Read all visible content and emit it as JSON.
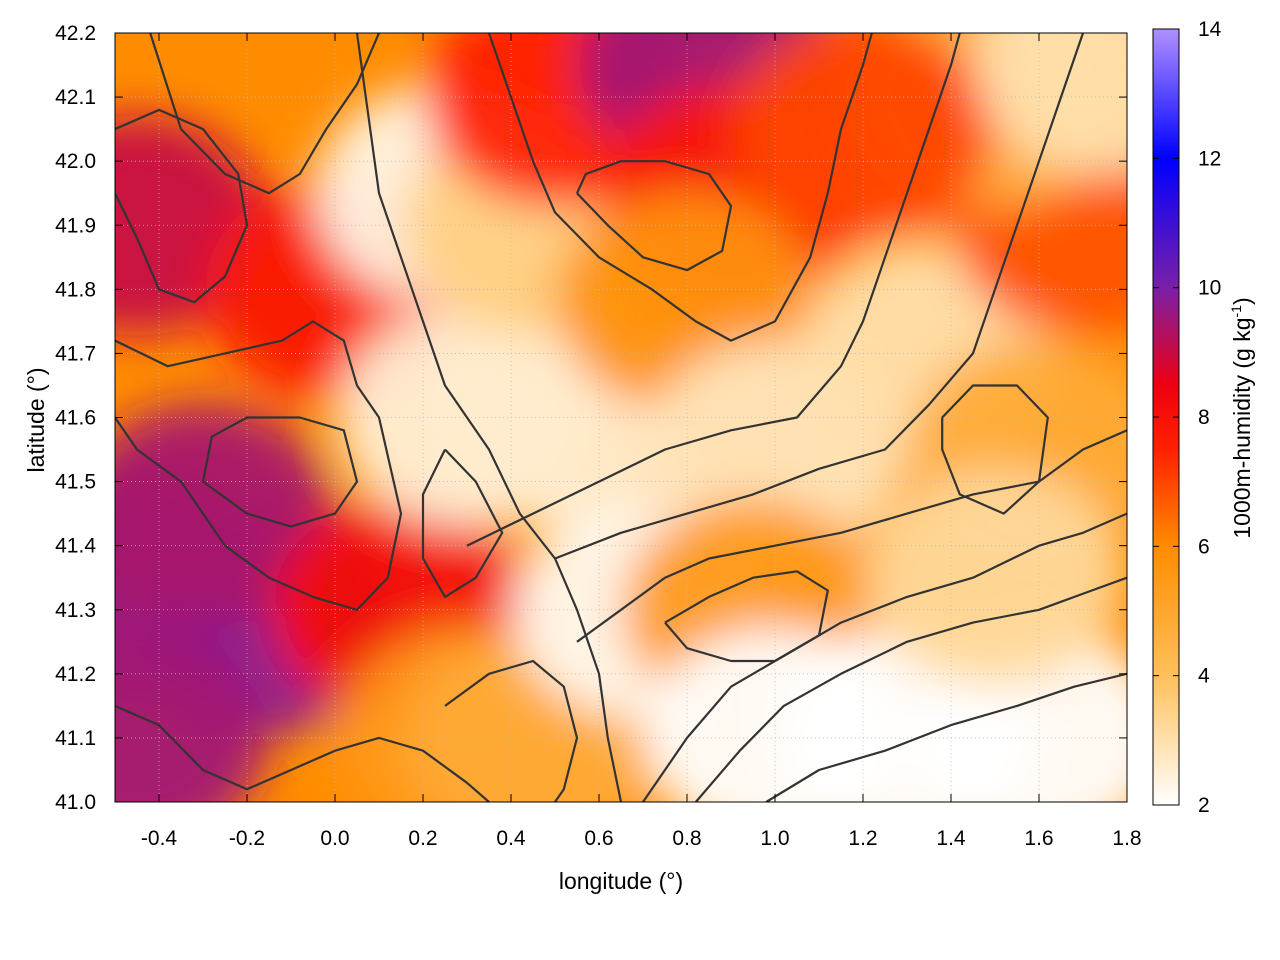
{
  "chart_data": {
    "type": "heatmap",
    "xlabel": "longitude (°)",
    "ylabel": "latitude (°)",
    "colorbar_label": "1000m-humidity (g kg",
    "colorbar_label_sup": "-1",
    "colorbar_label_end": ")",
    "xlim": [
      -0.5,
      1.8
    ],
    "ylim": [
      41.0,
      42.2
    ],
    "clim": [
      2,
      14
    ],
    "x_ticks": [
      -0.4,
      -0.2,
      0.0,
      0.2,
      0.4,
      0.6,
      0.8,
      1.0,
      1.2,
      1.4,
      1.6,
      1.8
    ],
    "x_tick_labels": [
      "-0.4",
      "-0.2",
      "0.0",
      "0.2",
      "0.4",
      "0.6",
      "0.8",
      "1.0",
      "1.2",
      "1.4",
      "1.6",
      "1.8"
    ],
    "y_ticks": [
      41.0,
      41.1,
      41.2,
      41.3,
      41.4,
      41.5,
      41.6,
      41.7,
      41.8,
      41.9,
      42.0,
      42.1,
      42.2
    ],
    "y_tick_labels": [
      "41.0",
      "41.1",
      "41.2",
      "41.3",
      "41.4",
      "41.5",
      "41.6",
      "41.7",
      "41.8",
      "41.9",
      "42.0",
      "42.1",
      "42.2"
    ],
    "colorbar_ticks": [
      2,
      4,
      6,
      8,
      10,
      12,
      14
    ],
    "colorbar_tick_labels": [
      "2",
      "4",
      "6",
      "8",
      "10",
      "12",
      "14"
    ],
    "colormap": [
      {
        "value": 2,
        "color": "#ffffff"
      },
      {
        "value": 4,
        "color": "#ffc05a"
      },
      {
        "value": 6,
        "color": "#ff8c00"
      },
      {
        "value": 7.5,
        "color": "#ff2000"
      },
      {
        "value": 8.5,
        "color": "#ee0010"
      },
      {
        "value": 10,
        "color": "#7a1fa8"
      },
      {
        "value": 12,
        "color": "#0000ff"
      },
      {
        "value": 14,
        "color": "#b090ff"
      }
    ],
    "grid": true,
    "contour_color": "#333333",
    "regions": [
      {
        "x": -0.45,
        "y": 41.35,
        "v": 9.6
      },
      {
        "x": -0.15,
        "y": 41.28,
        "v": 9.8
      },
      {
        "x": -0.3,
        "y": 41.45,
        "v": 9.4
      },
      {
        "x": -0.45,
        "y": 41.1,
        "v": 9.5
      },
      {
        "x": -0.45,
        "y": 41.9,
        "v": 9.0
      },
      {
        "x": 0.0,
        "y": 41.8,
        "v": 7.8
      },
      {
        "x": 0.15,
        "y": 41.3,
        "v": 8.2
      },
      {
        "x": 0.3,
        "y": 41.1,
        "v": 5.5
      },
      {
        "x": 0.45,
        "y": 41.1,
        "v": 4.8
      },
      {
        "x": 0.25,
        "y": 41.95,
        "v": 2.3
      },
      {
        "x": 0.3,
        "y": 41.6,
        "v": 2.5
      },
      {
        "x": 0.5,
        "y": 41.6,
        "v": 2.6
      },
      {
        "x": 0.45,
        "y": 41.9,
        "v": 3.5
      },
      {
        "x": 0.5,
        "y": 42.1,
        "v": 7.5
      },
      {
        "x": 0.85,
        "y": 42.15,
        "v": 9.5
      },
      {
        "x": 0.9,
        "y": 41.95,
        "v": 7.8
      },
      {
        "x": 0.8,
        "y": 41.78,
        "v": 5.8
      },
      {
        "x": 1.0,
        "y": 41.55,
        "v": 2.8
      },
      {
        "x": 0.7,
        "y": 41.3,
        "v": 2.2
      },
      {
        "x": 0.95,
        "y": 41.3,
        "v": 5.5
      },
      {
        "x": 1.0,
        "y": 41.1,
        "v": 2.0
      },
      {
        "x": 1.3,
        "y": 41.1,
        "v": 2.0
      },
      {
        "x": 1.6,
        "y": 41.1,
        "v": 2.0
      },
      {
        "x": 1.35,
        "y": 41.7,
        "v": 3.0
      },
      {
        "x": 1.6,
        "y": 41.55,
        "v": 4.8
      },
      {
        "x": 1.7,
        "y": 41.9,
        "v": 6.8
      },
      {
        "x": 1.5,
        "y": 42.1,
        "v": 4.5
      },
      {
        "x": 1.2,
        "y": 42.05,
        "v": 7.0
      },
      {
        "x": 1.75,
        "y": 42.15,
        "v": 3.0
      },
      {
        "x": 1.5,
        "y": 41.35,
        "v": 3.2
      }
    ],
    "contours": [
      [
        [
          -0.42,
          42.2
        ],
        [
          -0.35,
          42.05
        ],
        [
          -0.25,
          41.98
        ],
        [
          -0.15,
          41.95
        ],
        [
          -0.08,
          41.98
        ],
        [
          -0.02,
          42.05
        ],
        [
          0.05,
          42.12
        ],
        [
          0.1,
          42.2
        ]
      ],
      [
        [
          -0.5,
          41.72
        ],
        [
          -0.38,
          41.68
        ],
        [
          -0.25,
          41.7
        ],
        [
          -0.12,
          41.72
        ],
        [
          -0.05,
          41.75
        ],
        [
          0.02,
          41.72
        ],
        [
          0.05,
          41.65
        ],
        [
          0.1,
          41.6
        ],
        [
          0.15,
          41.45
        ],
        [
          0.12,
          41.35
        ],
        [
          0.05,
          41.3
        ],
        [
          -0.05,
          41.32
        ],
        [
          -0.15,
          41.35
        ],
        [
          -0.25,
          41.4
        ],
        [
          -0.35,
          41.5
        ],
        [
          -0.45,
          41.55
        ],
        [
          -0.5,
          41.6
        ]
      ],
      [
        [
          -0.3,
          41.5
        ],
        [
          -0.2,
          41.45
        ],
        [
          -0.1,
          41.43
        ],
        [
          0.0,
          41.45
        ],
        [
          0.05,
          41.5
        ],
        [
          0.02,
          41.58
        ],
        [
          -0.08,
          41.6
        ],
        [
          -0.2,
          41.6
        ],
        [
          -0.28,
          41.57
        ],
        [
          -0.3,
          41.5
        ]
      ],
      [
        [
          -0.5,
          41.15
        ],
        [
          -0.4,
          41.12
        ],
        [
          -0.3,
          41.05
        ],
        [
          -0.2,
          41.02
        ],
        [
          -0.1,
          41.05
        ],
        [
          0.0,
          41.08
        ],
        [
          0.1,
          41.1
        ],
        [
          0.2,
          41.08
        ],
        [
          0.3,
          41.03
        ],
        [
          0.35,
          41.0
        ]
      ],
      [
        [
          0.05,
          42.2
        ],
        [
          0.1,
          41.95
        ],
        [
          0.15,
          41.85
        ],
        [
          0.2,
          41.75
        ],
        [
          0.25,
          41.65
        ],
        [
          0.35,
          41.55
        ],
        [
          0.42,
          41.45
        ],
        [
          0.5,
          41.38
        ],
        [
          0.55,
          41.3
        ],
        [
          0.6,
          41.2
        ],
        [
          0.62,
          41.1
        ],
        [
          0.65,
          41.0
        ]
      ],
      [
        [
          0.35,
          42.2
        ],
        [
          0.4,
          42.1
        ],
        [
          0.45,
          42.0
        ],
        [
          0.5,
          41.92
        ],
        [
          0.6,
          41.85
        ],
        [
          0.72,
          41.8
        ],
        [
          0.82,
          41.75
        ],
        [
          0.9,
          41.72
        ],
        [
          1.0,
          41.75
        ],
        [
          1.08,
          41.85
        ],
        [
          1.12,
          41.95
        ],
        [
          1.15,
          42.05
        ],
        [
          1.2,
          42.15
        ],
        [
          1.22,
          42.2
        ]
      ],
      [
        [
          0.55,
          41.95
        ],
        [
          0.62,
          41.9
        ],
        [
          0.7,
          41.85
        ],
        [
          0.8,
          41.83
        ],
        [
          0.88,
          41.86
        ],
        [
          0.9,
          41.93
        ],
        [
          0.85,
          41.98
        ],
        [
          0.75,
          42.0
        ],
        [
          0.65,
          42.0
        ],
        [
          0.57,
          41.98
        ],
        [
          0.55,
          41.95
        ]
      ],
      [
        [
          0.3,
          41.4
        ],
        [
          0.45,
          41.45
        ],
        [
          0.6,
          41.5
        ],
        [
          0.75,
          41.55
        ],
        [
          0.9,
          41.58
        ],
        [
          1.05,
          41.6
        ],
        [
          1.15,
          41.68
        ],
        [
          1.2,
          41.75
        ],
        [
          1.25,
          41.85
        ],
        [
          1.3,
          41.95
        ],
        [
          1.35,
          42.05
        ],
        [
          1.4,
          42.15
        ],
        [
          1.42,
          42.2
        ]
      ],
      [
        [
          0.5,
          41.38
        ],
        [
          0.65,
          41.42
        ],
        [
          0.8,
          41.45
        ],
        [
          0.95,
          41.48
        ],
        [
          1.1,
          41.52
        ],
        [
          1.25,
          41.55
        ],
        [
          1.35,
          41.62
        ],
        [
          1.45,
          41.7
        ],
        [
          1.5,
          41.8
        ],
        [
          1.55,
          41.9
        ],
        [
          1.6,
          42.0
        ],
        [
          1.65,
          42.1
        ],
        [
          1.7,
          42.2
        ]
      ],
      [
        [
          0.55,
          41.25
        ],
        [
          0.65,
          41.3
        ],
        [
          0.75,
          41.35
        ],
        [
          0.85,
          41.38
        ],
        [
          1.0,
          41.4
        ],
        [
          1.15,
          41.42
        ],
        [
          1.3,
          41.45
        ],
        [
          1.45,
          41.48
        ],
        [
          1.6,
          41.5
        ],
        [
          1.7,
          41.55
        ],
        [
          1.8,
          41.58
        ]
      ],
      [
        [
          0.75,
          41.28
        ],
        [
          0.85,
          41.32
        ],
        [
          0.95,
          41.35
        ],
        [
          1.05,
          41.36
        ],
        [
          1.12,
          41.33
        ],
        [
          1.1,
          41.26
        ],
        [
          1.0,
          41.22
        ],
        [
          0.9,
          41.22
        ],
        [
          0.8,
          41.24
        ],
        [
          0.75,
          41.28
        ]
      ],
      [
        [
          0.7,
          41.0
        ],
        [
          0.8,
          41.1
        ],
        [
          0.9,
          41.18
        ],
        [
          1.0,
          41.22
        ],
        [
          1.15,
          41.28
        ],
        [
          1.3,
          41.32
        ],
        [
          1.45,
          41.35
        ],
        [
          1.6,
          41.4
        ],
        [
          1.7,
          41.42
        ],
        [
          1.8,
          41.45
        ]
      ],
      [
        [
          0.82,
          41.0
        ],
        [
          0.92,
          41.08
        ],
        [
          1.02,
          41.15
        ],
        [
          1.15,
          41.2
        ],
        [
          1.3,
          41.25
        ],
        [
          1.45,
          41.28
        ],
        [
          1.6,
          41.3
        ],
        [
          1.72,
          41.33
        ],
        [
          1.8,
          41.35
        ]
      ],
      [
        [
          0.98,
          41.0
        ],
        [
          1.1,
          41.05
        ],
        [
          1.25,
          41.08
        ],
        [
          1.4,
          41.12
        ],
        [
          1.55,
          41.15
        ],
        [
          1.68,
          41.18
        ],
        [
          1.8,
          41.2
        ]
      ],
      [
        [
          0.25,
          41.55
        ],
        [
          0.32,
          41.5
        ],
        [
          0.38,
          41.42
        ],
        [
          0.32,
          41.35
        ],
        [
          0.25,
          41.32
        ],
        [
          0.2,
          41.38
        ],
        [
          0.2,
          41.48
        ],
        [
          0.25,
          41.55
        ]
      ],
      [
        [
          -0.5,
          41.95
        ],
        [
          -0.45,
          41.88
        ],
        [
          -0.4,
          41.8
        ],
        [
          -0.32,
          41.78
        ],
        [
          -0.25,
          41.82
        ],
        [
          -0.2,
          41.9
        ],
        [
          -0.22,
          41.98
        ],
        [
          -0.3,
          42.05
        ],
        [
          -0.4,
          42.08
        ],
        [
          -0.5,
          42.05
        ]
      ],
      [
        [
          0.25,
          41.15
        ],
        [
          0.35,
          41.2
        ],
        [
          0.45,
          41.22
        ],
        [
          0.52,
          41.18
        ],
        [
          0.55,
          41.1
        ],
        [
          0.52,
          41.02
        ],
        [
          0.5,
          41.0
        ]
      ],
      [
        [
          1.38,
          41.6
        ],
        [
          1.45,
          41.65
        ],
        [
          1.55,
          41.65
        ],
        [
          1.62,
          41.6
        ],
        [
          1.6,
          41.5
        ],
        [
          1.52,
          41.45
        ],
        [
          1.42,
          41.48
        ],
        [
          1.38,
          41.55
        ],
        [
          1.38,
          41.6
        ]
      ]
    ]
  }
}
